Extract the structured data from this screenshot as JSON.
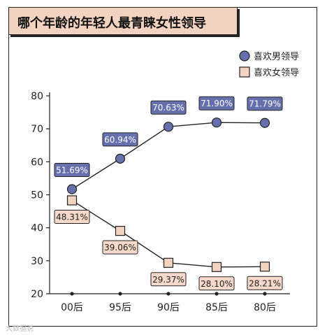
{
  "title": "哪个年龄的年轻人最青睐女性领导",
  "watermark": "大数据说",
  "colors": {
    "male_fill": "#6670ad",
    "male_label_bg": "#6670ad",
    "female_fill": "#f2d2c1",
    "female_label_bg": "#f6d9ca",
    "line": "#222222",
    "title_bg": "#f2d2c1"
  },
  "chart_data": {
    "type": "line",
    "title": "哪个年龄的年轻人最青睐女性领导",
    "categories": [
      "00后",
      "95后",
      "90后",
      "85后",
      "80后"
    ],
    "ylim": [
      20,
      80
    ],
    "yticks": [
      20,
      30,
      40,
      50,
      60,
      70,
      80
    ],
    "grid": false,
    "legend_position": "top-right",
    "series": [
      {
        "name": "喜欢男领导",
        "marker": "circle",
        "values": [
          51.69,
          60.94,
          70.63,
          71.9,
          71.79
        ],
        "labels": [
          "51.69%",
          "60.94%",
          "70.63%",
          "71.90%",
          "71.79%"
        ]
      },
      {
        "name": "喜欢女领导",
        "marker": "square",
        "values": [
          48.31,
          39.06,
          29.37,
          28.1,
          28.21
        ],
        "labels": [
          "48.31%",
          "39.06%",
          "29.37%",
          "28.10%",
          "28.21%"
        ]
      }
    ]
  }
}
